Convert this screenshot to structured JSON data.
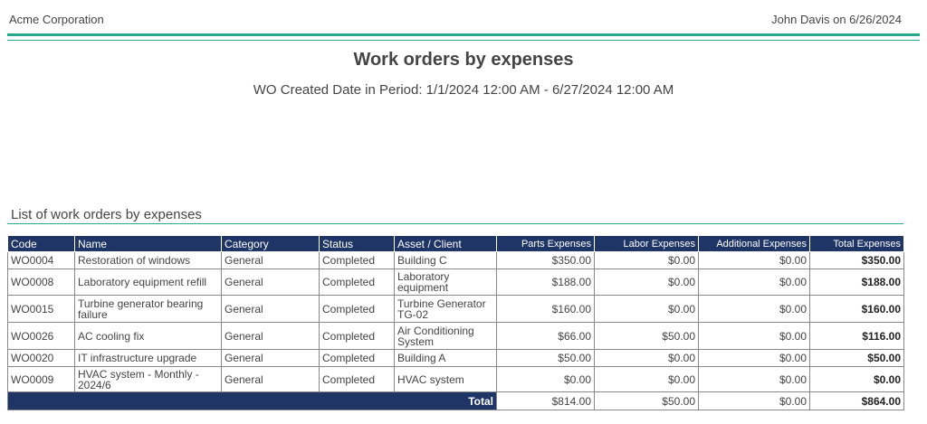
{
  "header": {
    "company": "Acme Corporation",
    "user_date": "John Davis on 6/26/2024"
  },
  "report": {
    "title": "Work orders by expenses",
    "subtitle": "WO Created Date in Period: 1/1/2024 12:00 AM - 6/27/2024 12:00 AM"
  },
  "section": {
    "title": "List of work orders by expenses"
  },
  "table": {
    "columns": [
      "Code",
      "Name",
      "Category",
      "Status",
      "Asset / Client",
      "Parts Expenses",
      "Labor Expenses",
      "Additional Expenses",
      "Total Expenses"
    ],
    "rows": [
      [
        "WO0004",
        "Restoration of windows",
        "General",
        "Completed",
        "Building C",
        "$350.00",
        "$0.00",
        "$0.00",
        "$350.00"
      ],
      [
        "WO0008",
        "Laboratory equipment refill",
        "General",
        "Completed",
        "Laboratory equipment",
        "$188.00",
        "$0.00",
        "$0.00",
        "$188.00"
      ],
      [
        "WO0015",
        "Turbine generator bearing failure",
        "General",
        "Completed",
        "Turbine Generator TG-02",
        "$160.00",
        "$0.00",
        "$0.00",
        "$160.00"
      ],
      [
        "WO0026",
        "AC cooling fix",
        "General",
        "Completed",
        "Air Conditioning System",
        "$66.00",
        "$50.00",
        "$0.00",
        "$116.00"
      ],
      [
        "WO0020",
        "IT infrastructure upgrade",
        "General",
        "Completed",
        "Building A",
        "$50.00",
        "$0.00",
        "$0.00",
        "$50.00"
      ],
      [
        "WO0009",
        "HVAC system - Monthly - 2024/6",
        "General",
        "Completed",
        "HVAC system",
        "$0.00",
        "$0.00",
        "$0.00",
        "$0.00"
      ]
    ],
    "total": {
      "label": "Total",
      "values": [
        "$814.00",
        "$50.00",
        "$0.00",
        "$864.00"
      ]
    }
  }
}
